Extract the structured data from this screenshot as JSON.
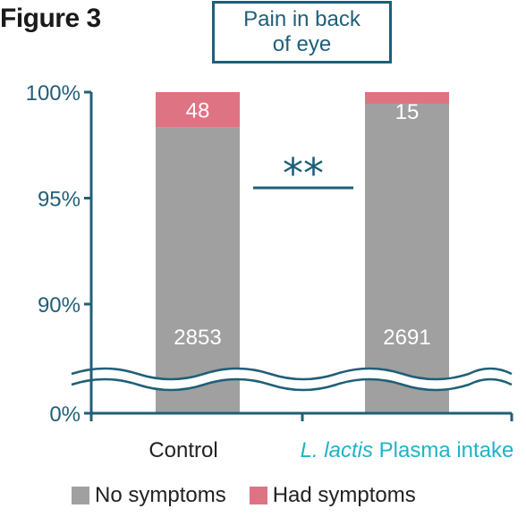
{
  "figure_label": "Figure 3",
  "title_lines": [
    "Pain in back",
    "of eye"
  ],
  "colors": {
    "no_symptoms": "#a0a0a0",
    "had_symptoms": "#de7383",
    "axis": "#1f5f78",
    "accent_italic": "#1fb3c8"
  },
  "chart_data": {
    "type": "bar",
    "stacked": true,
    "categories": [
      "Control",
      "L. lactis Plasma intake"
    ],
    "category_parts": [
      {
        "italic": "",
        "normal": "Control"
      },
      {
        "italic": "L. lactis",
        "normal": " Plasma intake"
      }
    ],
    "series": [
      {
        "name": "No symptoms",
        "counts": [
          2853,
          2691
        ],
        "percent": [
          98.34,
          99.45
        ]
      },
      {
        "name": "Had symptoms",
        "counts": [
          48,
          15
        ],
        "percent": [
          1.66,
          0.55
        ]
      }
    ],
    "y_ticks": [
      "0%",
      "90%",
      "95%",
      "100%"
    ],
    "ylim": [
      90,
      100
    ],
    "axis_break": true,
    "significance": "**",
    "legend": [
      "No symptoms",
      "Had symptoms"
    ],
    "legend_position": "bottom"
  }
}
